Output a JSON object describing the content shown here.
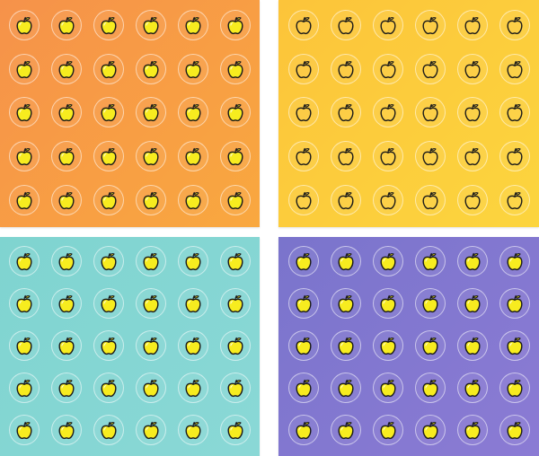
{
  "image": {
    "description_colors": {
      "apple_fill": "#f7ec1f",
      "apple_outline": "#1a1a1a"
    },
    "sheets": [
      {
        "id": "orange",
        "gradient": [
          "#f6924a",
          "#f9a83f"
        ],
        "rows": 5,
        "columns": 6,
        "sticker_icon": "apple-icon"
      },
      {
        "id": "yellow",
        "gradient": [
          "#fcc43a",
          "#fcd53e"
        ],
        "rows": 5,
        "columns": 6,
        "sticker_icon": "apple-outline-icon"
      },
      {
        "id": "teal",
        "gradient": [
          "#7fd4d0",
          "#8ad8d6"
        ],
        "rows": 5,
        "columns": 6,
        "sticker_icon": "apple-icon"
      },
      {
        "id": "purple",
        "gradient": [
          "#7a74cc",
          "#8b7bd4"
        ],
        "rows": 5,
        "columns": 6,
        "sticker_icon": "apple-icon"
      }
    ]
  }
}
